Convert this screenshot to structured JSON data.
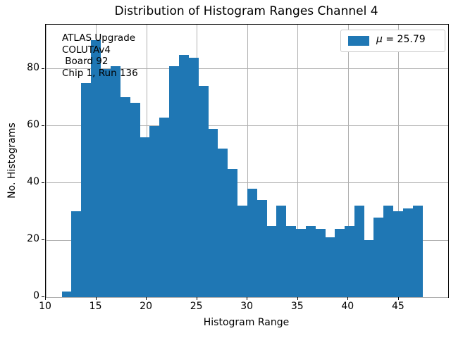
{
  "title": "Distribution of Histogram Ranges Channel 4",
  "axes": {
    "xlabel": "Histogram Range",
    "ylabel": "No. Histograms",
    "xticks": [
      10,
      15,
      20,
      25,
      30,
      35,
      40,
      45
    ],
    "yticks": [
      0,
      20,
      40,
      60,
      80
    ]
  },
  "annotation": {
    "lines": [
      "ATLAS Upgrade",
      "COLUTAv4",
      " Board 92",
      "Chip 1, Run 136"
    ]
  },
  "legend": {
    "mu_symbol": "μ",
    "value_text": " = 25.79",
    "full_label": "μ = 25.79"
  },
  "colors": {
    "bar": "#1f77b4",
    "grid": "#b0b0b0",
    "spine": "#000000",
    "legend_edge": "#cccccc",
    "background": "#ffffff"
  },
  "chart_data": {
    "type": "bar",
    "subtype": "histogram",
    "title": "Distribution of Histogram Ranges Channel 4",
    "xlabel": "Histogram Range",
    "ylabel": "No. Histograms",
    "bin_start": 11.58,
    "bin_width": 0.967,
    "counts": [
      2,
      30,
      75,
      90,
      80,
      81,
      70,
      68,
      56,
      60,
      63,
      81,
      85,
      84,
      74,
      59,
      52,
      45,
      32,
      38,
      34,
      25,
      32,
      25,
      24,
      25,
      24,
      21,
      24,
      25,
      32,
      20,
      28,
      32,
      30,
      31,
      32
    ],
    "mean": 25.79,
    "xlim": [
      10,
      49.9
    ],
    "ylim": [
      0,
      95.5
    ],
    "grid": true,
    "legend_position": "upper right"
  }
}
